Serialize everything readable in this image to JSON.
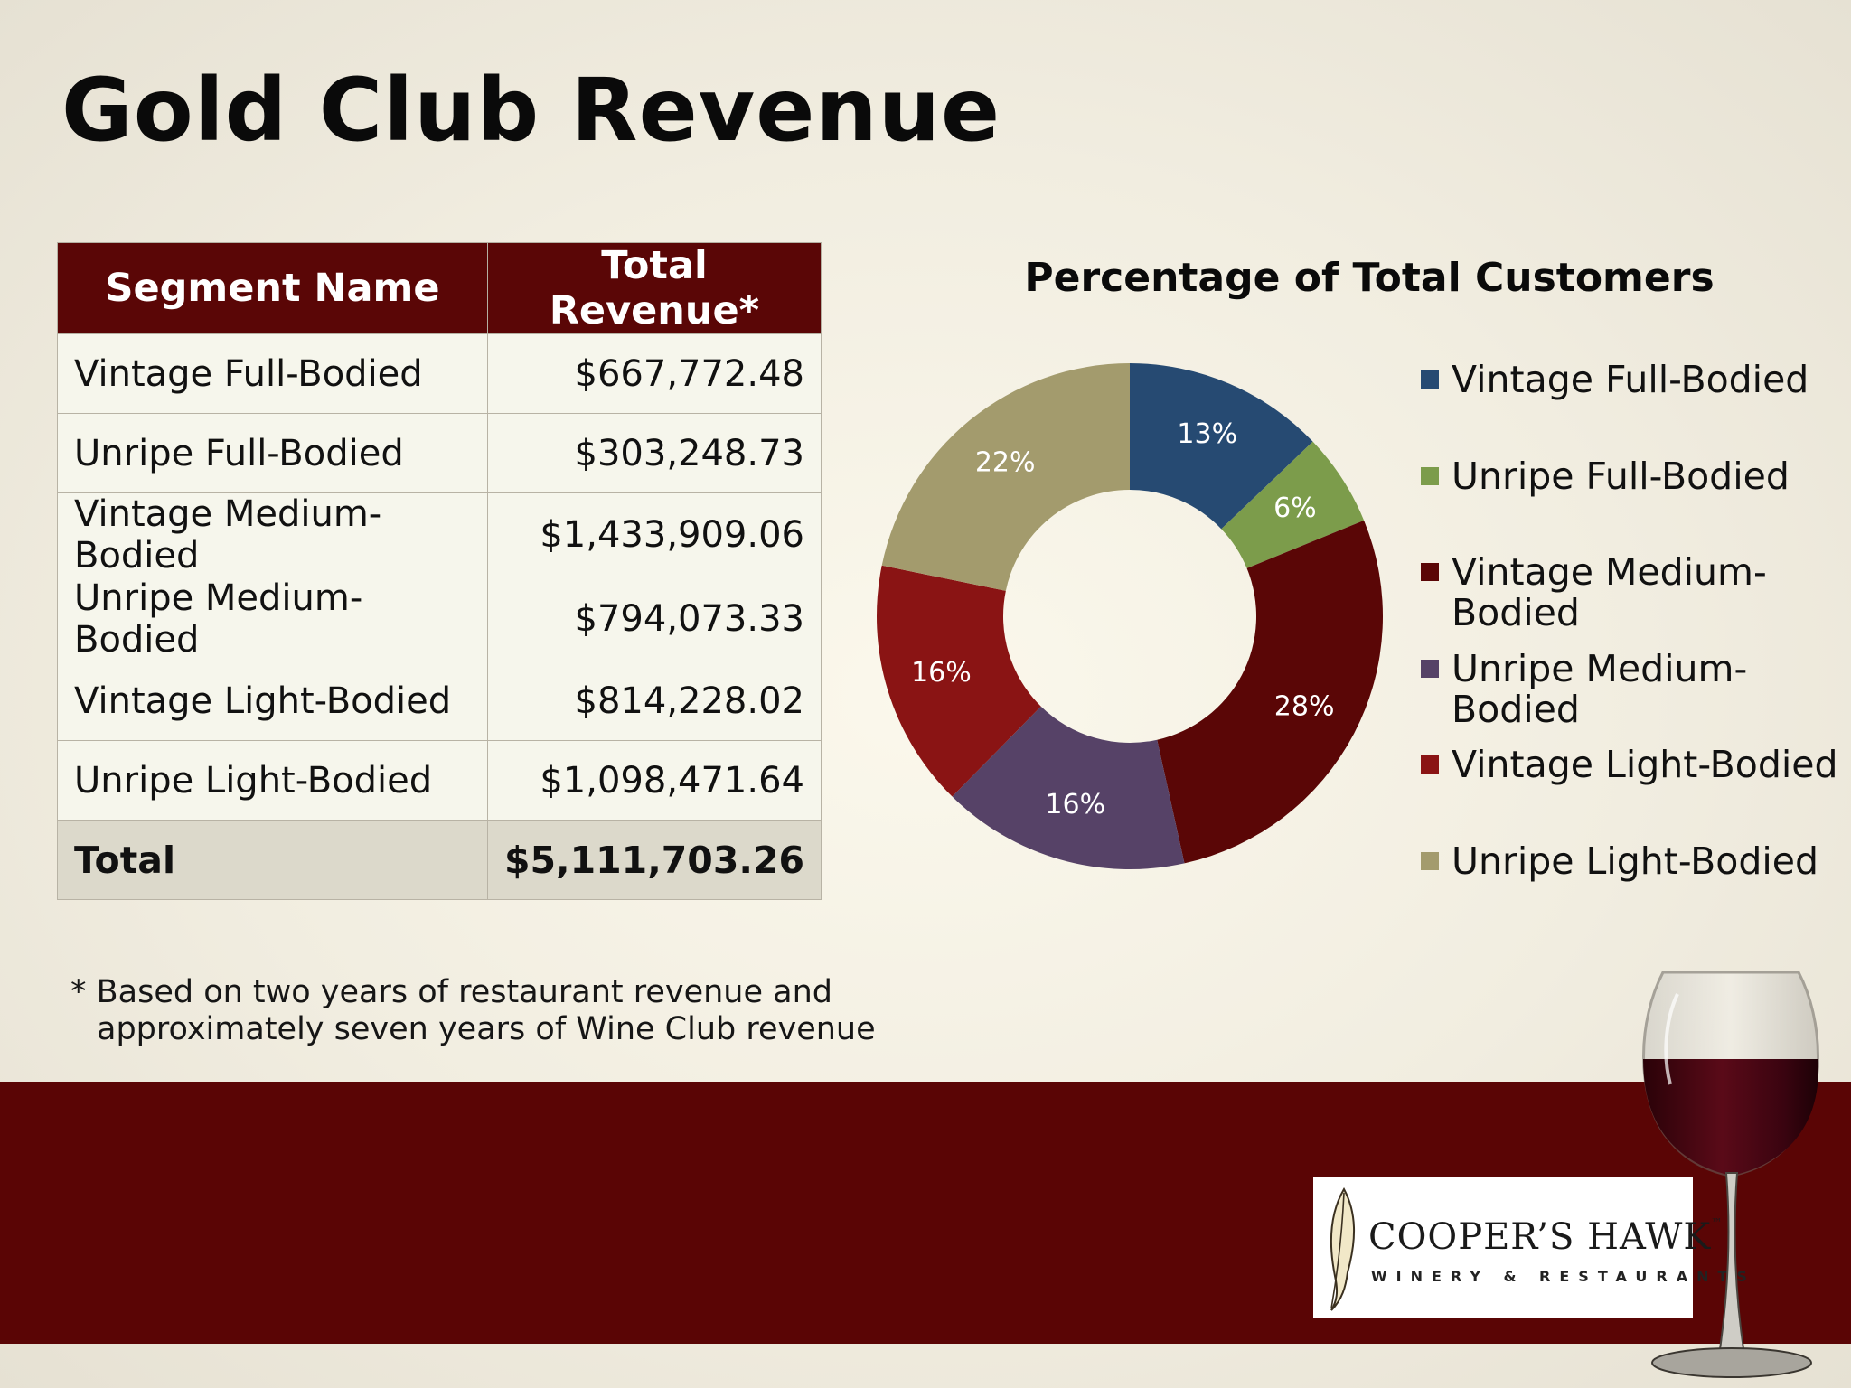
{
  "title": "Gold Club Revenue",
  "table": {
    "headers": [
      "Segment Name",
      "Total Revenue*"
    ],
    "rows": [
      {
        "segment": "Vintage Full-Bodied",
        "revenue": "$667,772.48"
      },
      {
        "segment": "Unripe Full-Bodied",
        "revenue": "$303,248.73"
      },
      {
        "segment": "Vintage Medium-Bodied",
        "revenue": "$1,433,909.06"
      },
      {
        "segment": "Unripe Medium-Bodied",
        "revenue": "$794,073.33"
      },
      {
        "segment": "Vintage Light-Bodied",
        "revenue": "$814,228.02"
      },
      {
        "segment": "Unripe Light-Bodied",
        "revenue": "$1,098,471.64"
      }
    ],
    "total_label": "Total",
    "total_value": "$5,111,703.26"
  },
  "footnote": {
    "line1": "* Based on two years of restaurant revenue and",
    "line2": "approximately seven years of Wine Club revenue"
  },
  "chart_data": {
    "type": "pie",
    "donut": true,
    "title": "Percentage of Total Customers",
    "legend_position": "right",
    "series": [
      {
        "name": "Vintage Full-Bodied",
        "legend_lines": [
          "Vintage Full-Bodied"
        ],
        "value": 13,
        "label": "13%",
        "color": "#264a72"
      },
      {
        "name": "Unripe Full-Bodied",
        "legend_lines": [
          "Unripe Full-Bodied"
        ],
        "value": 6,
        "label": "6%",
        "color": "#7c9c4b"
      },
      {
        "name": "Vintage Medium-Bodied",
        "legend_lines": [
          "Vintage Medium-",
          "Bodied"
        ],
        "value": 28,
        "label": "28%",
        "color": "#5a0606"
      },
      {
        "name": "Unripe Medium-Bodied",
        "legend_lines": [
          "Unripe Medium-",
          "Bodied"
        ],
        "value": 16,
        "label": "16%",
        "color": "#564267"
      },
      {
        "name": "Vintage Light-Bodied",
        "legend_lines": [
          "Vintage Light-Bodied"
        ],
        "value": 16,
        "label": "16%",
        "color": "#8a1414"
      },
      {
        "name": "Unripe Light-Bodied",
        "legend_lines": [
          "Unripe Light-Bodied"
        ],
        "value": 22,
        "label": "22%",
        "color": "#a39b6d"
      }
    ]
  },
  "footer": {
    "band_color": "#5a0505",
    "logo_text": "COOPER’S HAWK",
    "logo_tm": "™",
    "logo_subtext": "WINERY & RESTAURANTS"
  }
}
